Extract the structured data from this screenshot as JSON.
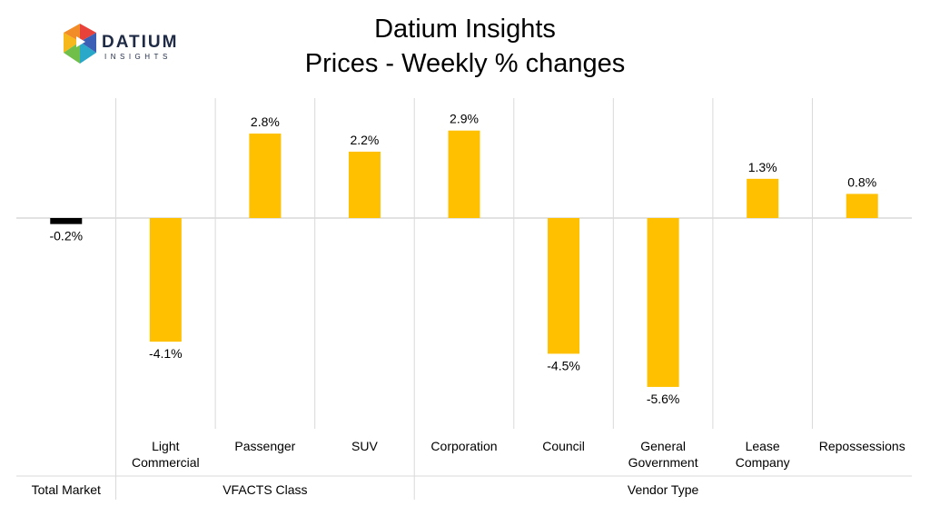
{
  "header": {
    "title_line1": "Datium Insights",
    "title_line2": "Prices - Weekly % changes"
  },
  "logo": {
    "name": "DATIUM",
    "sub": "INSIGHTS",
    "icon": "datium-logo-icon"
  },
  "colors": {
    "bar": "#FFC000",
    "total_bar": "#000000",
    "grid": "#d9d9d9"
  },
  "chart_data": {
    "type": "bar",
    "categories": [
      "",
      "Light Commercial",
      "Passenger",
      "SUV",
      "Corporation",
      "Council",
      "General Government",
      "Lease Company",
      "Repossessions"
    ],
    "category_lines": [
      [],
      [
        "Light",
        "Commercial"
      ],
      [
        "Passenger"
      ],
      [
        "SUV"
      ],
      [
        "Corporation"
      ],
      [
        "Council"
      ],
      [
        "General",
        "Government"
      ],
      [
        "Lease",
        "Company"
      ],
      [
        "Repossessions"
      ]
    ],
    "groups": [
      {
        "name": "Total Market",
        "start": 0,
        "end": 0
      },
      {
        "name": "VFACTS Class",
        "start": 1,
        "end": 3
      },
      {
        "name": "Vendor Type",
        "start": 4,
        "end": 8
      }
    ],
    "values": [
      -0.2,
      -4.1,
      2.8,
      2.2,
      2.9,
      -4.5,
      -5.6,
      1.3,
      0.8
    ],
    "labels": [
      "-0.2%",
      "-4.1%",
      "2.8%",
      "2.2%",
      "2.9%",
      "-4.5%",
      "-5.6%",
      "1.3%",
      "0.8%"
    ],
    "ylim": [
      -7,
      4
    ],
    "grid": false,
    "legend": "none"
  }
}
